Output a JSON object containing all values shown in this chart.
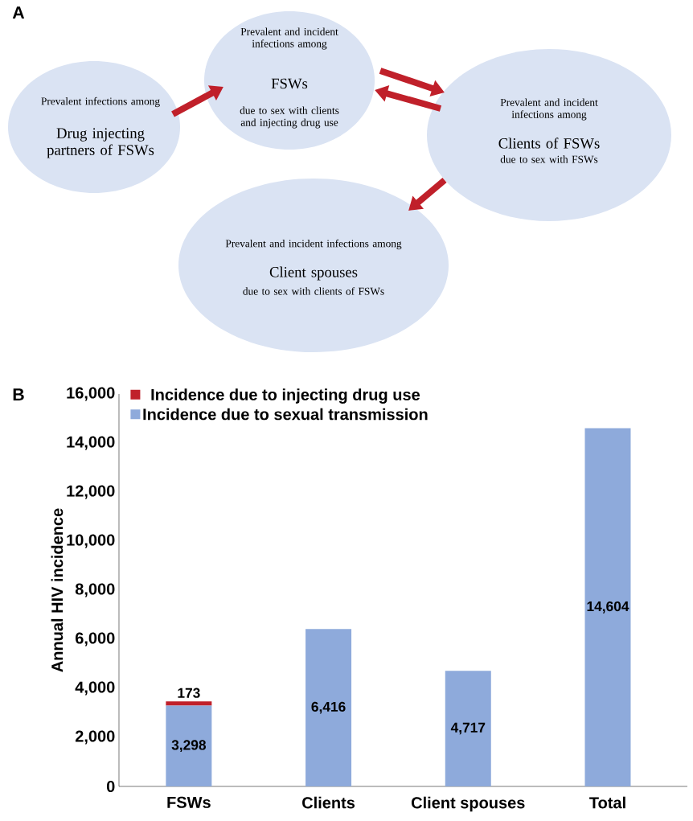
{
  "chart_data": [
    {
      "type": "other",
      "title": "A",
      "annotations": [
        "Prevalent infections among",
        "Drug injecting partners of FSWs",
        "Prevalent and incident infections among",
        "FSWs",
        "due to sex with clients and injecting drug use",
        "Prevalent and incident infections among",
        "Clients of FSWs",
        "due to sex with FSWs",
        "Prevalent and incident infections among",
        "Client spouses",
        "due to sex with clients of FSWs"
      ]
    },
    {
      "type": "bar",
      "title": "B",
      "stacked": true,
      "ylabel": "Annual HIV incidence",
      "categories": [
        "FSWs",
        "Clients",
        "Client spouses",
        "Total"
      ],
      "ylim": [
        0,
        16000
      ],
      "yticks": [
        0,
        {
          "value": 2000,
          "label": "2,000"
        },
        {
          "value": 4000,
          "label": "4,000"
        },
        {
          "value": 6000,
          "label": "6,000"
        },
        {
          "value": 8000,
          "label": "8,000"
        },
        {
          "value": 10000,
          "label": "10,000"
        },
        {
          "value": 12000,
          "label": "12,000"
        },
        {
          "value": 14000,
          "label": "14,000"
        },
        {
          "value": 16000,
          "label": "16,000"
        }
      ],
      "legend": "top left",
      "series": [
        {
          "name": "Incidence due to sexual transmission",
          "color": "#8eaadb",
          "values": [
            3298,
            6416,
            4717,
            14604
          ],
          "value_labels": [
            "3,298",
            "6,416",
            "4,717",
            "14,604"
          ]
        },
        {
          "name": "Incidence due to injecting drug use",
          "color": "#c0202a",
          "values": [
            173,
            null,
            null,
            null
          ],
          "value_labels": [
            "173",
            null,
            null,
            null
          ]
        }
      ]
    }
  ]
}
